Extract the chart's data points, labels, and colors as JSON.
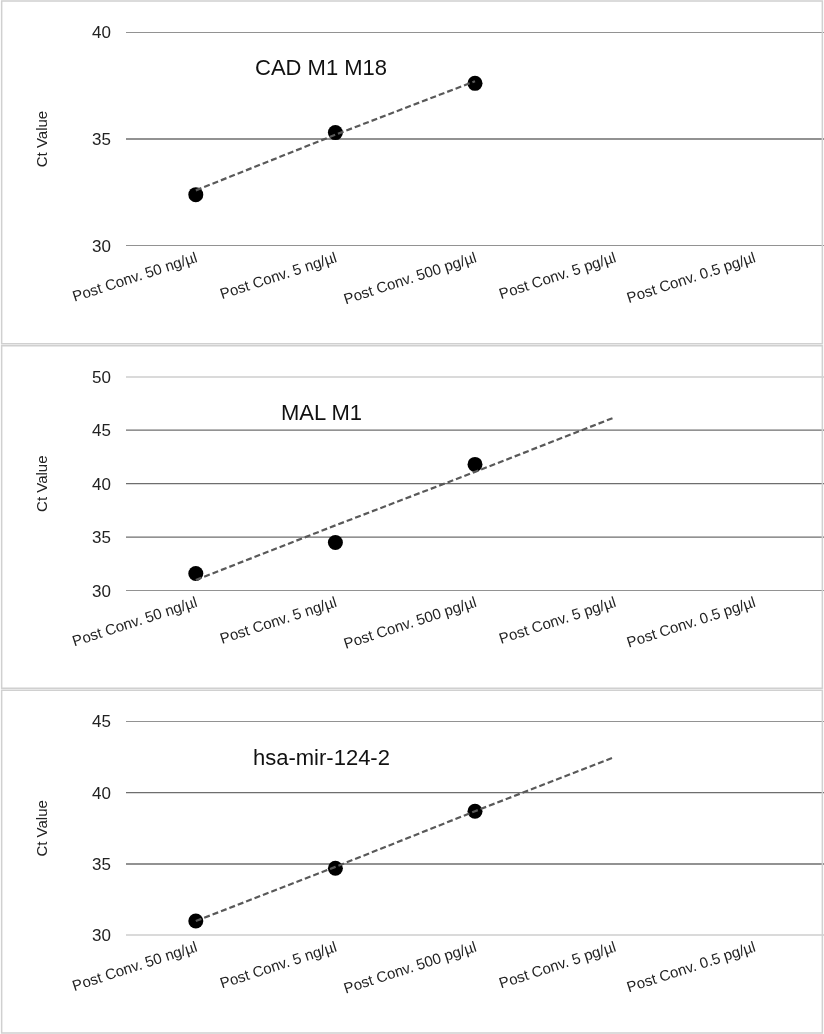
{
  "chart_data": [
    {
      "type": "scatter",
      "title": "CAD M1 M18",
      "ylabel": "Ct Value",
      "categories": [
        "Post Conv. 50 ng/µl",
        "Post Conv. 5 ng/µl",
        "Post Conv. 500 pg/µl",
        "Post Conv. 5 pg/µl",
        "Post Conv. 0.5 pg/µl"
      ],
      "marker": "circle",
      "grid": "y",
      "ylim": [
        30,
        40
      ],
      "yticks": [
        30,
        35,
        40
      ],
      "series": [
        {
          "color": "#000000",
          "values": [
            32.4,
            35.3,
            37.6,
            null,
            null
          ]
        },
        {
          "type": "line",
          "color": "#595959",
          "line_style": "dashed",
          "marker": "none",
          "values": [
            32.6,
            35.2,
            37.7,
            null,
            null
          ]
        }
      ]
    },
    {
      "type": "scatter",
      "title": "MAL M1",
      "ylabel": "Ct Value",
      "categories": [
        "Post Conv. 50 ng/µl",
        "Post Conv. 5 ng/µl",
        "Post Conv. 500 pg/µl",
        "Post Conv. 5 pg/µl",
        "Post Conv. 0.5 pg/µl"
      ],
      "marker": "circle",
      "grid": "y",
      "ylim": [
        30,
        50
      ],
      "yticks": [
        30,
        35,
        40,
        45,
        50
      ],
      "series": [
        {
          "color": "#000000",
          "values": [
            31.6,
            34.5,
            41.8,
            null,
            null
          ]
        },
        {
          "type": "line",
          "color": "#595959",
          "line_style": "dashed",
          "marker": "none",
          "values": [
            31,
            36.1,
            41.1,
            46.2,
            null
          ]
        }
      ]
    },
    {
      "type": "scatter",
      "title": "hsa-mir-124-2",
      "ylabel": "Ct Value",
      "categories": [
        "Post Conv. 50 ng/µl",
        "Post Conv. 5 ng/µl",
        "Post Conv. 500 pg/µl",
        "Post Conv. 5 pg/µl",
        "Post Conv. 0.5 pg/µl"
      ],
      "marker": "circle",
      "grid": "y",
      "ylim": [
        30,
        45
      ],
      "yticks": [
        30,
        35,
        40,
        45
      ],
      "series": [
        {
          "color": "#000000",
          "values": [
            31.0,
            34.7,
            38.7,
            null,
            null
          ]
        },
        {
          "type": "line",
          "color": "#595959",
          "line_style": "dashed",
          "marker": "none",
          "values": [
            31.0,
            34.8,
            38.7,
            42.5,
            null
          ]
        }
      ]
    }
  ]
}
